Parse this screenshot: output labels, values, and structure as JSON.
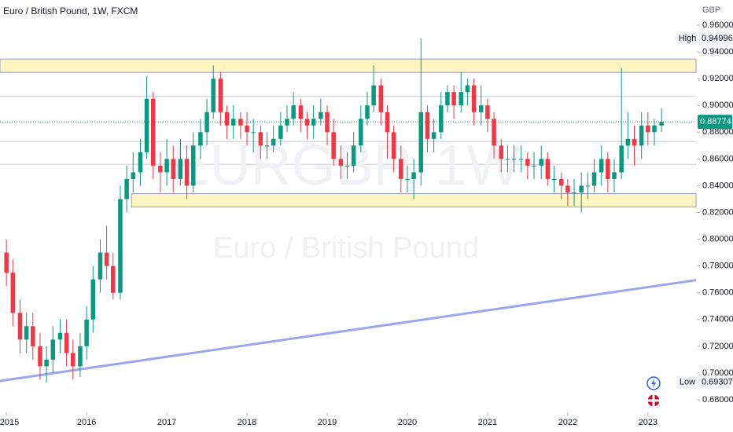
{
  "chart_data": {
    "type": "candlestick",
    "title": "Euro / British Pound, 1W, FXCM",
    "watermark": "EURGBP, 1W",
    "watermark_subtitle": "Euro / British Pound",
    "currency": "GBP",
    "up_color": "#089981",
    "down_color": "#f23645",
    "x": [
      2015.0,
      2015.08,
      2015.17,
      2015.25,
      2015.33,
      2015.42,
      2015.5,
      2015.58,
      2015.67,
      2015.75,
      2015.83,
      2015.92,
      2016.0,
      2016.08,
      2016.17,
      2016.25,
      2016.33,
      2016.42,
      2016.5,
      2016.58,
      2016.67,
      2016.75,
      2016.83,
      2016.92,
      2017.0,
      2017.08,
      2017.17,
      2017.25,
      2017.33,
      2017.42,
      2017.5,
      2017.58,
      2017.67,
      2017.75,
      2017.83,
      2017.92,
      2018.0,
      2018.08,
      2018.17,
      2018.25,
      2018.33,
      2018.42,
      2018.5,
      2018.58,
      2018.67,
      2018.75,
      2018.83,
      2018.92,
      2019.0,
      2019.08,
      2019.17,
      2019.25,
      2019.33,
      2019.42,
      2019.5,
      2019.58,
      2019.67,
      2019.75,
      2019.83,
      2019.92,
      2020.0,
      2020.08,
      2020.17,
      2020.25,
      2020.33,
      2020.42,
      2020.5,
      2020.58,
      2020.67,
      2020.75,
      2020.83,
      2020.92,
      2021.0,
      2021.08,
      2021.17,
      2021.25,
      2021.33,
      2021.42,
      2021.5,
      2021.58,
      2021.67,
      2021.75,
      2021.83,
      2021.92,
      2022.0,
      2022.08,
      2022.17,
      2022.25,
      2022.33,
      2022.42,
      2022.5,
      2022.58,
      2022.67,
      2022.75,
      2022.83,
      2022.92,
      2023.0,
      2023.08,
      2023.17
    ],
    "open": [
      0.79,
      0.775,
      0.745,
      0.725,
      0.735,
      0.72,
      0.705,
      0.71,
      0.725,
      0.73,
      0.715,
      0.705,
      0.72,
      0.74,
      0.77,
      0.79,
      0.78,
      0.76,
      0.83,
      0.845,
      0.85,
      0.865,
      0.905,
      0.855,
      0.85,
      0.86,
      0.845,
      0.86,
      0.84,
      0.87,
      0.88,
      0.895,
      0.92,
      0.895,
      0.885,
      0.89,
      0.885,
      0.88,
      0.88,
      0.87,
      0.87,
      0.875,
      0.885,
      0.89,
      0.9,
      0.89,
      0.885,
      0.89,
      0.895,
      0.88,
      0.86,
      0.855,
      0.855,
      0.87,
      0.89,
      0.9,
      0.915,
      0.895,
      0.88,
      0.86,
      0.845,
      0.845,
      0.85,
      0.895,
      0.875,
      0.88,
      0.9,
      0.91,
      0.9,
      0.91,
      0.915,
      0.895,
      0.9,
      0.89,
      0.87,
      0.86,
      0.86,
      0.86,
      0.86,
      0.855,
      0.855,
      0.86,
      0.845,
      0.845,
      0.84,
      0.835,
      0.835,
      0.84,
      0.84,
      0.85,
      0.86,
      0.845,
      0.85,
      0.87,
      0.875,
      0.87,
      0.885,
      0.88,
      0.885
    ],
    "high": [
      0.8,
      0.785,
      0.755,
      0.745,
      0.745,
      0.73,
      0.72,
      0.735,
      0.74,
      0.74,
      0.725,
      0.73,
      0.75,
      0.78,
      0.8,
      0.81,
      0.79,
      0.84,
      0.855,
      0.865,
      0.875,
      0.922,
      0.91,
      0.865,
      0.875,
      0.87,
      0.875,
      0.87,
      0.88,
      0.89,
      0.905,
      0.93,
      0.925,
      0.9,
      0.9,
      0.895,
      0.895,
      0.89,
      0.885,
      0.88,
      0.885,
      0.895,
      0.9,
      0.91,
      0.905,
      0.895,
      0.9,
      0.905,
      0.9,
      0.89,
      0.87,
      0.865,
      0.88,
      0.9,
      0.91,
      0.93,
      0.92,
      0.9,
      0.885,
      0.87,
      0.855,
      0.86,
      0.95,
      0.9,
      0.89,
      0.91,
      0.915,
      0.915,
      0.925,
      0.92,
      0.92,
      0.915,
      0.905,
      0.895,
      0.875,
      0.87,
      0.87,
      0.87,
      0.865,
      0.865,
      0.87,
      0.865,
      0.855,
      0.85,
      0.845,
      0.845,
      0.85,
      0.85,
      0.86,
      0.87,
      0.865,
      0.86,
      0.928,
      0.895,
      0.885,
      0.895,
      0.895,
      0.89,
      0.898
    ],
    "low": [
      0.765,
      0.735,
      0.715,
      0.715,
      0.71,
      0.695,
      0.693,
      0.7,
      0.715,
      0.705,
      0.695,
      0.697,
      0.71,
      0.73,
      0.76,
      0.77,
      0.755,
      0.755,
      0.82,
      0.835,
      0.84,
      0.86,
      0.845,
      0.835,
      0.84,
      0.835,
      0.84,
      0.83,
      0.835,
      0.86,
      0.87,
      0.89,
      0.885,
      0.875,
      0.875,
      0.875,
      0.87,
      0.865,
      0.86,
      0.86,
      0.865,
      0.87,
      0.88,
      0.885,
      0.88,
      0.875,
      0.875,
      0.885,
      0.87,
      0.855,
      0.845,
      0.845,
      0.85,
      0.865,
      0.885,
      0.895,
      0.885,
      0.86,
      0.85,
      0.835,
      0.835,
      0.83,
      0.84,
      0.865,
      0.865,
      0.875,
      0.895,
      0.89,
      0.895,
      0.9,
      0.885,
      0.885,
      0.88,
      0.86,
      0.85,
      0.85,
      0.85,
      0.85,
      0.845,
      0.845,
      0.845,
      0.84,
      0.835,
      0.83,
      0.825,
      0.825,
      0.82,
      0.83,
      0.835,
      0.84,
      0.835,
      0.835,
      0.845,
      0.86,
      0.855,
      0.86,
      0.87,
      0.87,
      0.88
    ],
    "close": [
      0.775,
      0.745,
      0.725,
      0.735,
      0.72,
      0.705,
      0.71,
      0.725,
      0.73,
      0.715,
      0.705,
      0.72,
      0.74,
      0.77,
      0.79,
      0.78,
      0.76,
      0.83,
      0.845,
      0.85,
      0.865,
      0.905,
      0.855,
      0.85,
      0.86,
      0.845,
      0.86,
      0.84,
      0.87,
      0.88,
      0.895,
      0.92,
      0.895,
      0.885,
      0.89,
      0.885,
      0.88,
      0.88,
      0.87,
      0.87,
      0.875,
      0.885,
      0.89,
      0.9,
      0.89,
      0.885,
      0.89,
      0.895,
      0.88,
      0.86,
      0.855,
      0.855,
      0.87,
      0.89,
      0.9,
      0.915,
      0.895,
      0.88,
      0.86,
      0.845,
      0.845,
      0.85,
      0.895,
      0.875,
      0.88,
      0.9,
      0.91,
      0.9,
      0.91,
      0.915,
      0.895,
      0.9,
      0.89,
      0.87,
      0.86,
      0.86,
      0.86,
      0.86,
      0.855,
      0.855,
      0.86,
      0.845,
      0.845,
      0.84,
      0.835,
      0.835,
      0.84,
      0.84,
      0.85,
      0.86,
      0.845,
      0.85,
      0.87,
      0.875,
      0.87,
      0.885,
      0.88,
      0.885,
      0.8877
    ],
    "xlim": [
      2014.92,
      2023.6
    ],
    "ylim": [
      0.6706,
      0.9788
    ],
    "xticks": [
      2015,
      2016,
      2017,
      2018,
      2019,
      2020,
      2021,
      2022,
      2023
    ],
    "yticks": [
      {
        "value": 0.96,
        "label": "0.96000"
      },
      {
        "value": 0.94,
        "label": "0.94000"
      },
      {
        "value": 0.92,
        "label": "0.92000"
      },
      {
        "value": 0.9,
        "label": "0.90000"
      },
      {
        "value": 0.88,
        "label": "0.88000"
      },
      {
        "value": 0.86,
        "label": "0.86000"
      },
      {
        "value": 0.84,
        "label": "0.84000"
      },
      {
        "value": 0.82,
        "label": "0.82000"
      },
      {
        "value": 0.8,
        "label": "0.80000"
      },
      {
        "value": 0.78,
        "label": "0.78000"
      },
      {
        "value": 0.76,
        "label": "0.76000"
      },
      {
        "value": 0.74,
        "label": "0.74000"
      },
      {
        "value": 0.72,
        "label": "0.72000"
      },
      {
        "value": 0.7,
        "label": "0.70000"
      },
      {
        "value": 0.68,
        "label": "0.68000"
      }
    ],
    "high_marker": {
      "label": "High",
      "value": 0.94996
    },
    "low_marker": {
      "label": "Low",
      "value": 0.69307
    },
    "last_price": 0.88774,
    "zones": [
      {
        "x_from": 2014.92,
        "from": 0.9247,
        "to": 0.9347
      },
      {
        "x_from": 2016.56,
        "from": 0.8241,
        "to": 0.8341
      }
    ],
    "levels": [
      0.907,
      0.873,
      0.856
    ],
    "trendline": {
      "x": [
        2014.92,
        2023.6
      ],
      "y": [
        0.6941,
        0.7694
      ]
    }
  }
}
